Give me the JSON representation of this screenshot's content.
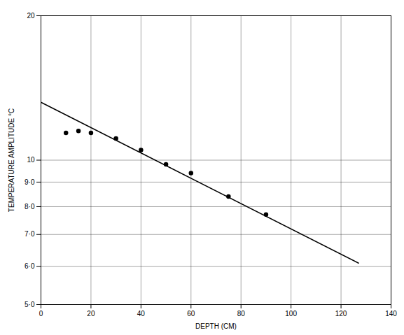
{
  "chart_data": {
    "type": "scatter",
    "x_label": "DEPTH (CM)",
    "y_label": "TEMPERATURE AMPLITUDE °C",
    "log": "y",
    "grid": true,
    "xlim": [
      0,
      140
    ],
    "xticks": [
      0,
      20,
      40,
      60,
      80,
      100,
      120,
      140
    ],
    "ylim": [
      5,
      20
    ],
    "yticks": [
      {
        "value": 5,
        "label": "5·0"
      },
      {
        "value": 6,
        "label": "6·0"
      },
      {
        "value": 7,
        "label": "7·0"
      },
      {
        "value": 8,
        "label": "8·0"
      },
      {
        "value": 9,
        "label": "9·0"
      },
      10,
      20
    ],
    "series": [
      {
        "type": "scatter",
        "color": "#000000",
        "marker": "circle",
        "x": [
          10,
          15,
          20,
          30,
          40,
          50,
          60,
          75,
          90
        ],
        "values": [
          11.4,
          11.5,
          11.4,
          11.1,
          10.5,
          9.8,
          9.4,
          8.4,
          7.7
        ]
      },
      {
        "type": "line",
        "color": "#000000",
        "line_style": "solid",
        "x": [
          0,
          127
        ],
        "values": [
          13.2,
          6.1
        ]
      }
    ]
  }
}
